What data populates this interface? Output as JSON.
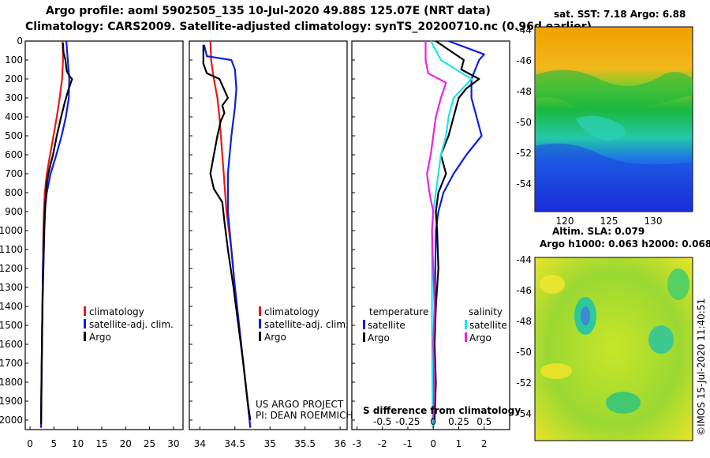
{
  "header": {
    "title_line1": "Argo profile: aoml 5902505_135 10-Jul-2020 49.88S 125.07E (NRT data)",
    "title_line2": "Climatology: CARS2009. Satellite-adjusted climatology: synTS_20200710.nc (0.96d earlier)"
  },
  "colors": {
    "climatology": "#e8190f",
    "satellite": "#0a1ee6",
    "argo": "#000000",
    "argo_salinity": "#ee22dd",
    "satellite_salinity": "#19e6e6"
  },
  "depth_axis": {
    "ticks": [
      "0",
      "100",
      "200",
      "300",
      "400",
      "500",
      "600",
      "700",
      "800",
      "900",
      "1000",
      "1100",
      "1200",
      "1300",
      "1400",
      "1500",
      "1600",
      "1700",
      "1800",
      "1900",
      "2000"
    ],
    "range": [
      0,
      2050
    ]
  },
  "chart_data": [
    {
      "type": "line",
      "id": "temperature",
      "xlabel": "",
      "ylabel": "depth",
      "xlim": [
        -1,
        32
      ],
      "ylim": [
        2050,
        0
      ],
      "x_ticks": [
        "0",
        "5",
        "10",
        "15",
        "20",
        "25",
        "30"
      ],
      "legend": [
        "climatology",
        "satellite-adj. clim.",
        "Argo"
      ],
      "legend_position": "lower-right",
      "series": [
        {
          "name": "climatology",
          "color": "climatology",
          "points": [
            [
              6.8,
              0
            ],
            [
              6.9,
              100
            ],
            [
              6.7,
              200
            ],
            [
              6.2,
              300
            ],
            [
              5.6,
              400
            ],
            [
              4.9,
              500
            ],
            [
              4.2,
              600
            ],
            [
              3.5,
              700
            ],
            [
              3.1,
              800
            ],
            [
              2.9,
              900
            ],
            [
              2.8,
              1000
            ],
            [
              2.7,
              1200
            ],
            [
              2.6,
              1400
            ],
            [
              2.5,
              1600
            ],
            [
              2.4,
              1800
            ],
            [
              2.3,
              2040
            ]
          ]
        },
        {
          "name": "satellite-adj. clim.",
          "color": "satellite",
          "points": [
            [
              7.6,
              0
            ],
            [
              7.9,
              100
            ],
            [
              8.2,
              200
            ],
            [
              8.1,
              300
            ],
            [
              7.5,
              400
            ],
            [
              6.6,
              500
            ],
            [
              5.5,
              600
            ],
            [
              4.3,
              700
            ],
            [
              3.5,
              800
            ],
            [
              3.1,
              900
            ],
            [
              2.9,
              1000
            ],
            [
              2.7,
              1200
            ],
            [
              2.6,
              1400
            ],
            [
              2.5,
              1600
            ],
            [
              2.4,
              1800
            ],
            [
              2.3,
              2040
            ]
          ]
        },
        {
          "name": "Argo",
          "color": "argo",
          "points": [
            [
              6.9,
              10
            ],
            [
              7.0,
              60
            ],
            [
              7.4,
              100
            ],
            [
              7.7,
              160
            ],
            [
              8.4,
              190
            ],
            [
              8.8,
              200
            ],
            [
              8.0,
              260
            ],
            [
              7.3,
              320
            ],
            [
              6.5,
              400
            ],
            [
              5.6,
              500
            ],
            [
              4.8,
              600
            ],
            [
              4.0,
              680
            ],
            [
              3.5,
              750
            ],
            [
              3.2,
              850
            ],
            [
              3.0,
              1000
            ],
            [
              2.8,
              1200
            ],
            [
              2.6,
              1400
            ],
            [
              2.5,
              1600
            ],
            [
              2.4,
              1800
            ],
            [
              2.3,
              2020
            ]
          ]
        }
      ]
    },
    {
      "type": "line",
      "id": "salinity",
      "xlabel": "",
      "xlim": [
        33.85,
        36.1
      ],
      "ylim": [
        2050,
        0
      ],
      "x_ticks": [
        "34",
        "34.5",
        "35",
        "35.5",
        "36"
      ],
      "legend": [
        "climatology",
        "satellite-adj. clim.",
        "Argo"
      ],
      "legend_position": "lower-right",
      "credit_line1": "US ARGO PROJECT",
      "credit_line2": "PI: DEAN ROEMMICH",
      "series": [
        {
          "name": "climatology",
          "color": "climatology",
          "points": [
            [
              34.15,
              0
            ],
            [
              34.16,
              100
            ],
            [
              34.2,
              200
            ],
            [
              34.25,
              300
            ],
            [
              34.28,
              400
            ],
            [
              34.3,
              500
            ],
            [
              34.32,
              600
            ],
            [
              34.34,
              700
            ],
            [
              34.38,
              900
            ],
            [
              34.45,
              1100
            ],
            [
              34.5,
              1300
            ],
            [
              34.56,
              1500
            ],
            [
              34.62,
              1700
            ],
            [
              34.68,
              1900
            ],
            [
              34.72,
              2040
            ]
          ]
        },
        {
          "name": "satellite-adj. clim.",
          "color": "satellite",
          "points": [
            [
              34.06,
              20
            ],
            [
              34.1,
              80
            ],
            [
              34.45,
              100
            ],
            [
              34.5,
              150
            ],
            [
              34.52,
              250
            ],
            [
              34.5,
              350
            ],
            [
              34.45,
              500
            ],
            [
              34.4,
              700
            ],
            [
              34.4,
              900
            ],
            [
              34.45,
              1100
            ],
            [
              34.5,
              1300
            ],
            [
              34.56,
              1500
            ],
            [
              34.62,
              1700
            ],
            [
              34.68,
              1900
            ],
            [
              34.72,
              2040
            ]
          ]
        },
        {
          "name": "Argo",
          "color": "argo",
          "points": [
            [
              34.05,
              20
            ],
            [
              34.05,
              120
            ],
            [
              34.1,
              170
            ],
            [
              34.28,
              200
            ],
            [
              34.4,
              300
            ],
            [
              34.32,
              340
            ],
            [
              34.35,
              380
            ],
            [
              34.3,
              420
            ],
            [
              34.25,
              500
            ],
            [
              34.2,
              600
            ],
            [
              34.15,
              700
            ],
            [
              34.2,
              780
            ],
            [
              34.32,
              850
            ],
            [
              34.35,
              950
            ],
            [
              34.4,
              1100
            ],
            [
              34.48,
              1300
            ],
            [
              34.55,
              1500
            ],
            [
              34.62,
              1700
            ],
            [
              34.68,
              1900
            ],
            [
              34.72,
              2000
            ]
          ]
        }
      ]
    },
    {
      "type": "line",
      "id": "difference",
      "xlabel": "S difference from climatology",
      "xlim": [
        -3.2,
        3
      ],
      "ylim": [
        2050,
        0
      ],
      "x_ticks": [
        "-3",
        "-2",
        "-1",
        "0",
        "1",
        "2"
      ],
      "x_ticks_salinity": [
        "-0.5",
        "-0.25",
        "0",
        "0.25",
        "0.5"
      ],
      "legend_temp_title": "temperature",
      "legend_sal_title": "salinity",
      "legend": [
        "satellite",
        "Argo",
        "satellite",
        "Argo"
      ],
      "series": [
        {
          "name": "temperature satellite",
          "color": "satellite",
          "points": [
            [
              0.6,
              0
            ],
            [
              2,
              70
            ],
            [
              1.8,
              100
            ],
            [
              1.5,
              200
            ],
            [
              1.5,
              300
            ],
            [
              1.7,
              400
            ],
            [
              1.9,
              500
            ],
            [
              1.3,
              600
            ],
            [
              0.8,
              700
            ],
            [
              0.4,
              800
            ],
            [
              0.2,
              900
            ],
            [
              0.1,
              1000
            ],
            [
              0.05,
              1500
            ],
            [
              0.0,
              2040
            ]
          ]
        },
        {
          "name": "temperature Argo",
          "color": "argo",
          "points": [
            [
              0.1,
              0
            ],
            [
              1.2,
              100
            ],
            [
              1.1,
              150
            ],
            [
              1.8,
              200
            ],
            [
              1.3,
              250
            ],
            [
              1.0,
              300
            ],
            [
              0.8,
              400
            ],
            [
              0.6,
              500
            ],
            [
              0.3,
              600
            ],
            [
              0.5,
              700
            ],
            [
              0.2,
              800
            ],
            [
              0.1,
              900
            ],
            [
              0.15,
              1000
            ],
            [
              0.2,
              1200
            ],
            [
              0.1,
              1400
            ],
            [
              0.05,
              1600
            ],
            [
              0.1,
              1800
            ],
            [
              0.05,
              2000
            ]
          ]
        },
        {
          "name": "salinity satellite",
          "color": "satellite_salinity",
          "points": [
            [
              -0.1,
              0
            ],
            [
              0.3,
              100
            ],
            [
              1.5,
              200
            ],
            [
              0.8,
              300
            ],
            [
              0.6,
              400
            ],
            [
              0.5,
              500
            ],
            [
              0.3,
              600
            ],
            [
              0.2,
              700
            ],
            [
              0.1,
              800
            ],
            [
              0.0,
              900
            ],
            [
              -0.05,
              1000
            ],
            [
              -0.05,
              1500
            ],
            [
              -0.02,
              2040
            ]
          ]
        },
        {
          "name": "salinity Argo",
          "color": "argo_salinity",
          "points": [
            [
              -0.3,
              0
            ],
            [
              -0.3,
              100
            ],
            [
              -0.2,
              170
            ],
            [
              0.5,
              220
            ],
            [
              0.3,
              300
            ],
            [
              0.1,
              400
            ],
            [
              0.0,
              500
            ],
            [
              -0.1,
              600
            ],
            [
              -0.25,
              700
            ],
            [
              -0.15,
              800
            ],
            [
              0.0,
              900
            ],
            [
              -0.05,
              1000
            ],
            [
              0.0,
              1200
            ],
            [
              0.05,
              1400
            ],
            [
              0.0,
              1600
            ],
            [
              0.05,
              1800
            ],
            [
              0.0,
              2000
            ]
          ]
        }
      ]
    }
  ],
  "maps": {
    "sst": {
      "title": "sat. SST: 7.18 Argo: 6.88",
      "lat_ticks": [
        "-44",
        "-46",
        "-48",
        "-50",
        "-52",
        "-54"
      ],
      "lon_ticks": [
        "120",
        "125",
        "130"
      ]
    },
    "sla": {
      "title1": "Altim. SLA: 0.079",
      "title2": "Argo h1000: 0.063 h2000: 0.068",
      "lat_ticks": [
        "-44",
        "-46",
        "-48",
        "-50",
        "-52",
        "-54"
      ]
    }
  },
  "footer": {
    "watermark": "©IMOS 15-Jul-2020 11:40:51"
  }
}
